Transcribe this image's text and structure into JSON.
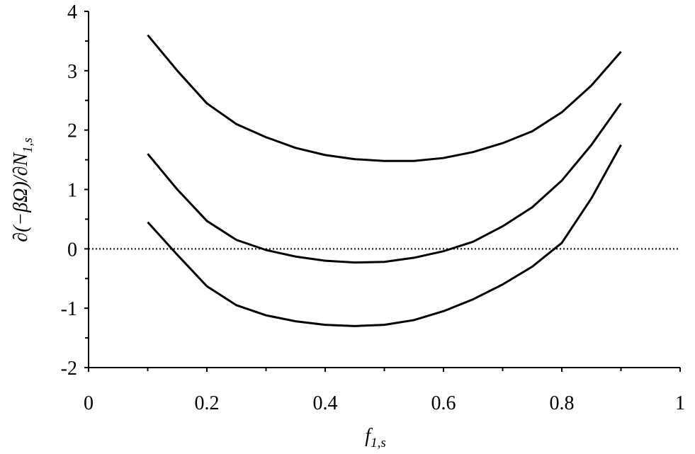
{
  "chart_data": {
    "type": "line",
    "xlabel": "f",
    "xlabel_sub": "1,s",
    "ylabel": "∂(−βΩ)/∂N",
    "ylabel_sub": "1,s",
    "x": [
      0.1,
      0.15,
      0.2,
      0.25,
      0.3,
      0.35,
      0.4,
      0.45,
      0.5,
      0.55,
      0.6,
      0.65,
      0.7,
      0.75,
      0.8,
      0.85,
      0.9
    ],
    "series": [
      {
        "color": "#000000",
        "values": [
          3.6,
          3.0,
          2.45,
          2.1,
          1.88,
          1.7,
          1.58,
          1.51,
          1.48,
          1.48,
          1.53,
          1.63,
          1.78,
          1.98,
          2.3,
          2.75,
          3.32
        ]
      },
      {
        "color": "#000000",
        "values": [
          1.6,
          1.0,
          0.47,
          0.15,
          -0.02,
          -0.13,
          -0.2,
          -0.23,
          -0.22,
          -0.15,
          -0.04,
          0.12,
          0.38,
          0.7,
          1.15,
          1.75,
          2.45
        ]
      },
      {
        "color": "#000000",
        "values": [
          0.45,
          -0.1,
          -0.63,
          -0.95,
          -1.12,
          -1.22,
          -1.28,
          -1.3,
          -1.28,
          -1.2,
          -1.05,
          -0.85,
          -0.6,
          -0.3,
          0.1,
          0.85,
          1.75
        ]
      }
    ],
    "xlim": [
      0,
      1
    ],
    "xticks": [
      0,
      0.2,
      0.4,
      0.6,
      0.8,
      1
    ],
    "xminorticks": [
      0.1,
      0.3,
      0.5,
      0.7,
      0.9
    ],
    "ylim": [
      -2,
      4
    ],
    "yticks": [
      -2,
      -1,
      0,
      1,
      2,
      3,
      4
    ],
    "yminorticks": [
      -1.5,
      -0.5,
      0.5,
      1.5,
      2.5,
      3.5
    ],
    "reference_line": {
      "value": 0,
      "style": "dotted"
    },
    "grid": false
  }
}
